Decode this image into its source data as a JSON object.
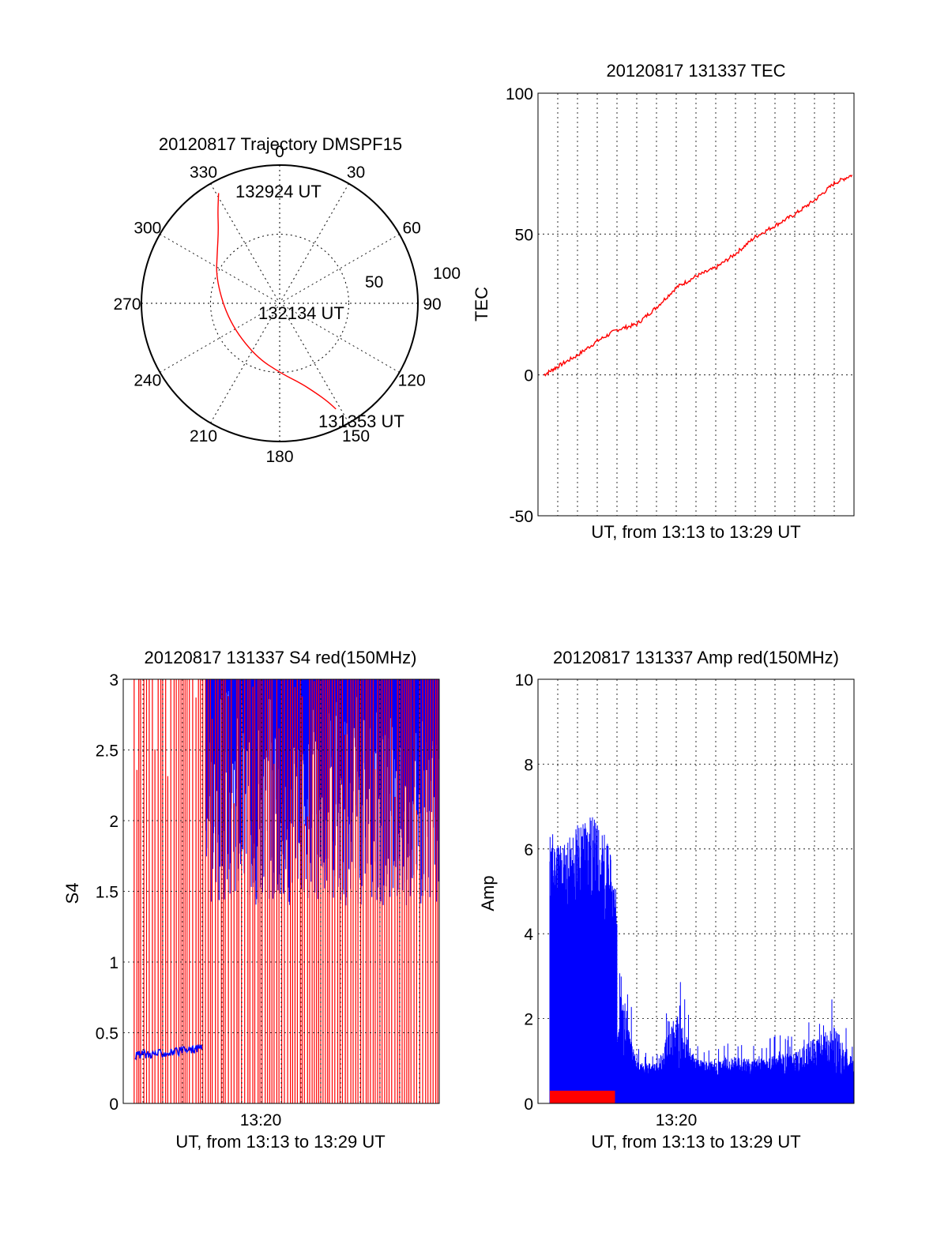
{
  "chart_data": [
    {
      "type": "polar",
      "title": "20120817 Trajectory DMSPF15",
      "angle_ticks": [
        "0",
        "30",
        "60",
        "90",
        "120",
        "150",
        "180",
        "210",
        "240",
        "270",
        "300",
        "330"
      ],
      "radial_ticks": [
        "50",
        "100"
      ],
      "radial_range": [
        0,
        100
      ],
      "grid": true,
      "series": [
        {
          "color": "#ff0000",
          "points": [
            {
              "az": 152,
              "el": 12
            },
            {
              "az": 154,
              "el": 19
            },
            {
              "az": 158,
              "el": 27
            },
            {
              "az": 165,
              "el": 36
            },
            {
              "az": 178,
              "el": 44
            },
            {
              "az": 205,
              "el": 52
            },
            {
              "az": 250,
              "el": 55
            },
            {
              "az": 290,
              "el": 46
            },
            {
              "az": 310,
              "el": 37
            },
            {
              "az": 320,
              "el": 28
            },
            {
              "az": 326,
              "el": 18
            },
            {
              "az": 331,
              "el": 8
            }
          ]
        }
      ],
      "annotations": [
        {
          "text": "132924 UT",
          "az": 331,
          "el": 8
        },
        {
          "text": "132134 UT",
          "az": 228,
          "el": 78
        },
        {
          "text": "131353 UT",
          "az": 152,
          "el": 12
        }
      ]
    },
    {
      "type": "line",
      "title": "20120817 131337 TEC",
      "xlabel": "UT, from 13:13 to 13:29 UT",
      "ylabel": "TEC",
      "xlim": [
        0,
        16
      ],
      "ylim": [
        -50,
        100
      ],
      "yticks": [
        "-50",
        "0",
        "50",
        "100"
      ],
      "grid": true,
      "series": [
        {
          "color": "#ff0000",
          "x": [
            0.3,
            1.0,
            2.0,
            3.0,
            4.0,
            5.0,
            6.0,
            7.0,
            8.0,
            9.0,
            10.0,
            11.0,
            12.0,
            13.0,
            14.0,
            15.0,
            15.9
          ],
          "y": [
            0,
            3,
            7,
            12,
            16,
            18,
            24,
            31,
            35,
            38,
            43,
            49,
            53,
            57,
            62,
            68,
            71
          ]
        }
      ]
    },
    {
      "type": "line",
      "title": "20120817 131337 S4 red(150MHz)",
      "xlabel": "UT, from 13:13 to 13:29 UT",
      "ylabel": "S4",
      "xtick_labels": [
        "13:20"
      ],
      "xlim": [
        0,
        16
      ],
      "ylim": [
        0,
        3
      ],
      "yticks": [
        "0",
        "0.5",
        "1",
        "1.5",
        "2",
        "2.5",
        "3"
      ],
      "grid": true,
      "series": [
        {
          "color": "#ff0000",
          "note_values": "dense spikes 0 to 3"
        },
        {
          "color": "#0000ff",
          "x": [
            0.6,
            1.5,
            2.5,
            3.5,
            4.0
          ],
          "y": [
            0.34,
            0.35,
            0.36,
            0.38,
            0.4
          ]
        }
      ]
    },
    {
      "type": "line",
      "title": "20120817 131337 Amp red(150MHz)",
      "xlabel": "UT, from 13:13 to 13:29 UT",
      "ylabel": "Amp",
      "xtick_labels": [
        "13:20"
      ],
      "xlim": [
        0,
        16
      ],
      "ylim": [
        0,
        10
      ],
      "yticks": [
        "0",
        "2",
        "4",
        "6",
        "8",
        "10"
      ],
      "grid": true,
      "series": [
        {
          "color": "#0000ff",
          "x": [
            0.6,
            1.5,
            2.5,
            3.5,
            4.0,
            5.0,
            6.0,
            7.0,
            8.0,
            9.0,
            10.0,
            11.0,
            12.0,
            13.0,
            14.0,
            15.0,
            16.0
          ],
          "y_max": [
            6.5,
            6.2,
            7.0,
            6.3,
            5.0,
            1.3,
            1.2,
            3.4,
            1.4,
            1.3,
            1.5,
            1.4,
            1.6,
            1.7,
            2.3,
            2.8,
            1.3
          ]
        },
        {
          "color": "#ff0000",
          "x": [
            0.6,
            3.9
          ],
          "y_max": [
            0.3,
            0.3
          ]
        }
      ]
    }
  ]
}
